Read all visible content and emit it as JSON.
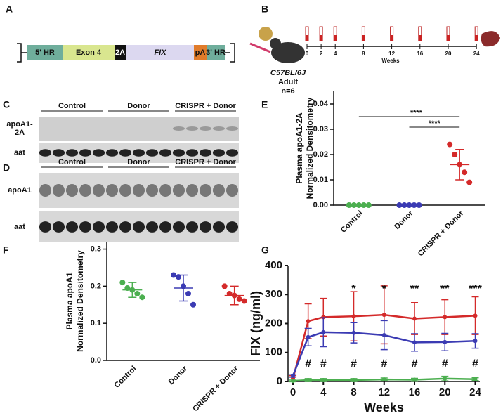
{
  "panels": [
    "A",
    "B",
    "C",
    "D",
    "E",
    "F",
    "G"
  ],
  "construct": [
    "5' HR",
    "Exon 4",
    "2A",
    "FIX",
    "pA",
    "3' HR"
  ],
  "timeline": {
    "weeks": [
      0,
      2,
      4,
      8,
      12,
      16,
      20,
      24
    ],
    "label": "Weeks",
    "strain": "C57BL/6J",
    "age": "Adult",
    "n": "n=6"
  },
  "blots": [
    {
      "groups": [
        "Control",
        "Donor",
        "CRISPR + Donor"
      ],
      "rows": [
        [
          "apoA1-",
          "2A"
        ],
        [
          "aat"
        ]
      ]
    },
    {
      "groups": [
        "Control",
        "Donor",
        "CRISPR + Donor"
      ],
      "rows": [
        [
          "apoA1"
        ],
        [
          "aat"
        ]
      ]
    }
  ],
  "chart_data": [
    {
      "type": "scatter",
      "ylabel": [
        "Plasma apoA1-2A",
        "Normalized Densitometry"
      ],
      "categories": [
        "Control",
        "Donor",
        "CRISPR + Donor"
      ],
      "colors": [
        "#4caf50",
        "#3b3bb3",
        "#d42a2a"
      ],
      "points": [
        [
          0,
          0,
          0,
          0,
          0
        ],
        [
          0,
          0,
          0,
          0,
          0
        ],
        [
          0.024,
          0.02,
          0.016,
          0.013,
          0.009
        ]
      ],
      "mean": [
        0,
        0,
        0.016
      ],
      "sd": [
        0,
        0,
        0.006
      ],
      "ylim": [
        0,
        0.045
      ],
      "yticks": [
        {
          "value": 0,
          "label": "0.00"
        },
        {
          "value": 0.01,
          "label": "0.01"
        },
        {
          "value": 0.02,
          "label": "0.02"
        },
        {
          "value": 0.03,
          "label": "0.03"
        },
        {
          "value": 0.04,
          "label": "0.04"
        }
      ],
      "brackets": [
        "****",
        "****"
      ]
    },
    {
      "type": "scatter",
      "ylabel": [
        "Plasma apoA1",
        "Normalized Densitometry"
      ],
      "categories": [
        "Control",
        "Donor",
        "CRISPR + Donor"
      ],
      "colors": [
        "#4caf50",
        "#3b3bb3",
        "#d42a2a"
      ],
      "points": [
        [
          0.21,
          0.195,
          0.19,
          0.18,
          0.17
        ],
        [
          0.23,
          0.225,
          0.2,
          0.18,
          0.15
        ],
        [
          0.2,
          0.18,
          0.175,
          0.165,
          0.16
        ]
      ],
      "mean": [
        0.19,
        0.195,
        0.175
      ],
      "sd": [
        0.02,
        0.035,
        0.025
      ],
      "ylim": [
        0,
        0.32
      ],
      "yticks": [
        {
          "value": 0,
          "label": "0.0"
        },
        {
          "value": 0.1,
          "label": "0.1"
        },
        {
          "value": 0.2,
          "label": "0.2"
        },
        {
          "value": 0.3,
          "label": "0.3"
        }
      ]
    },
    {
      "type": "line",
      "ylabel": "FIX (ng/ml)",
      "xlabel": "Weeks",
      "x": [
        0,
        2,
        4,
        8,
        12,
        16,
        20,
        24
      ],
      "series": [
        {
          "color": "#d42a2a",
          "values": [
            10,
            208,
            222,
            225,
            230,
            217,
            222,
            227
          ],
          "errors": [
            10,
            60,
            65,
            85,
            100,
            55,
            60,
            65
          ]
        },
        {
          "color": "#3b3bb3",
          "values": [
            20,
            153,
            170,
            168,
            160,
            135,
            136,
            140
          ],
          "errors": [
            5,
            30,
            50,
            35,
            50,
            30,
            30,
            25
          ]
        },
        {
          "color": "#4caf50",
          "values": [
            2,
            5,
            5,
            5,
            7,
            6,
            10,
            8
          ],
          "errors": [
            3,
            5,
            5,
            5,
            5,
            5,
            8,
            5
          ]
        }
      ],
      "significance": [
        null,
        null,
        null,
        "*",
        "*",
        "**",
        "**",
        "***"
      ],
      "hash": [
        null,
        "#",
        "#",
        "#",
        "#",
        "#",
        "#",
        "#"
      ],
      "xlim": [
        -0.65,
        24.6
      ],
      "xticks": [
        0,
        4,
        8,
        12,
        16,
        20,
        24
      ],
      "ylim": [
        0,
        400
      ],
      "yticks": [
        0,
        100,
        200,
        300,
        400
      ]
    }
  ]
}
